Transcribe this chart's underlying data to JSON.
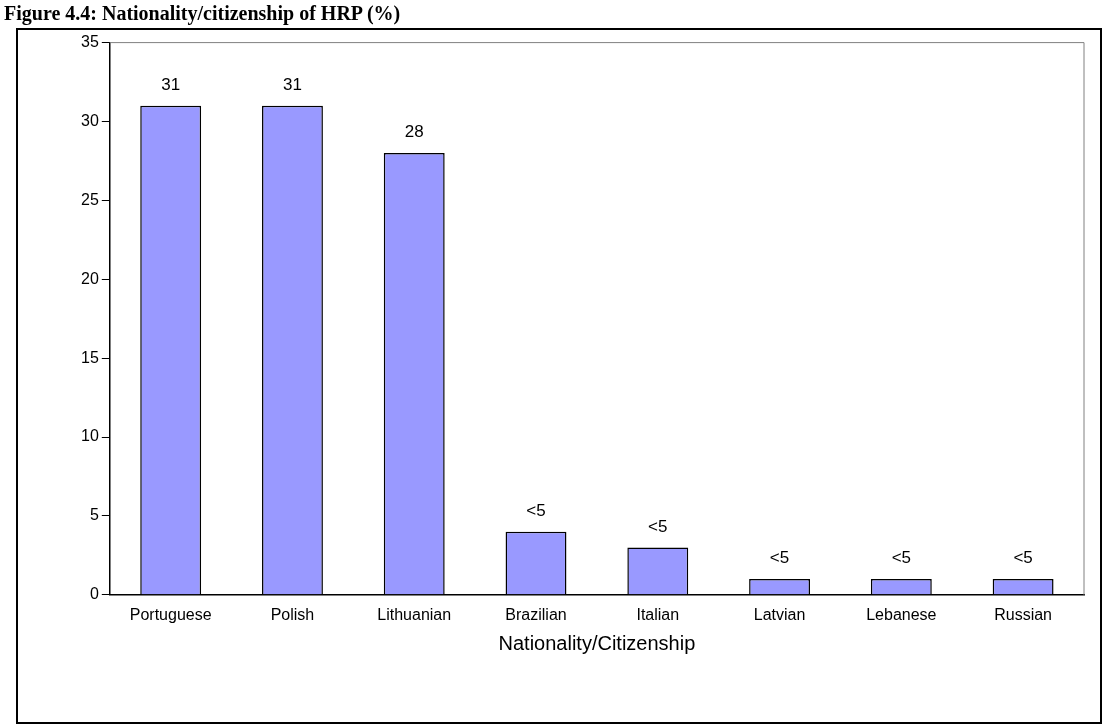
{
  "chart_data": {
    "type": "bar",
    "title": "Figure 4.4: Nationality/citizenship of HRP (%)",
    "xlabel": "Nationality/Citizenship",
    "categories": [
      "Portuguese",
      "Polish",
      "Lithuanian",
      "Brazilian",
      "Italian",
      "Latvian",
      "Lebanese",
      "Russian"
    ],
    "values": [
      31,
      31,
      28,
      4,
      3,
      1,
      1,
      1
    ],
    "value_labels": [
      "31",
      "31",
      "28",
      "<5",
      "<5",
      "<5",
      "<5",
      "<5"
    ],
    "color": "#9999ff",
    "ylim": [
      0,
      35
    ],
    "yticks": [
      0,
      5,
      10,
      15,
      20,
      25,
      30,
      35
    ],
    "grid": false,
    "legend": false
  }
}
